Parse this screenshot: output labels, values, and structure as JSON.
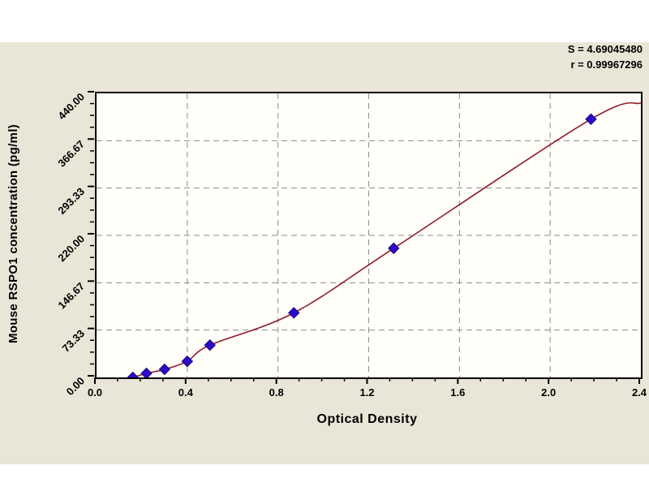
{
  "page": {
    "background": "#ffffff",
    "panel_color": "#e9e6d8",
    "plot_fill": "#fffef8",
    "border_color": "#000000"
  },
  "chart_data": {
    "type": "scatter",
    "title": "",
    "xlabel": "Optical Density",
    "ylabel": "Mouse RSPO1 concentration (pg/ml)",
    "xlim": [
      0,
      2.4
    ],
    "ylim": [
      0,
      440
    ],
    "x_tick_values": [
      0.0,
      0.4,
      0.8,
      1.2,
      1.6,
      2.0,
      2.4
    ],
    "x_tick_labels": [
      "0.0",
      "0.4",
      "0.8",
      "1.2",
      "1.6",
      "2.0",
      "2.4"
    ],
    "x_minor_step": 0.1,
    "y_tick_values": [
      0,
      73.33,
      146.67,
      220,
      293.33,
      366.67,
      440
    ],
    "y_tick_labels": [
      "0.00",
      "73.33",
      "146.67",
      "220.00",
      "293.33",
      "366.67",
      "440.00"
    ],
    "y_minor_divisions": 4,
    "grid": {
      "show": true,
      "style": "dashed",
      "color": "#8c8c8c"
    },
    "legend": null,
    "series": [
      {
        "name": "standard-points",
        "type": "scatter",
        "marker": "diamond",
        "color": "#2d0ac8",
        "stroke": "#1c0680",
        "points": [
          [
            0.16,
            0
          ],
          [
            0.22,
            6.25
          ],
          [
            0.3,
            12.5
          ],
          [
            0.4,
            25
          ],
          [
            0.5,
            50
          ],
          [
            0.87,
            100
          ],
          [
            1.31,
            200
          ],
          [
            2.18,
            400
          ]
        ]
      },
      {
        "name": "fit-curve",
        "type": "line",
        "color": "#8f1b2b",
        "points": [
          [
            0.16,
            0
          ],
          [
            0.22,
            6.25
          ],
          [
            0.3,
            12.5
          ],
          [
            0.4,
            25
          ],
          [
            0.5,
            50
          ],
          [
            0.87,
            100
          ],
          [
            1.31,
            200
          ],
          [
            2.18,
            400
          ],
          [
            2.4,
            425
          ]
        ]
      }
    ],
    "annotations": [
      {
        "name": "slope",
        "text": "S = 4.69045480"
      },
      {
        "name": "correlation",
        "text": "r = 0.99967296"
      }
    ]
  }
}
